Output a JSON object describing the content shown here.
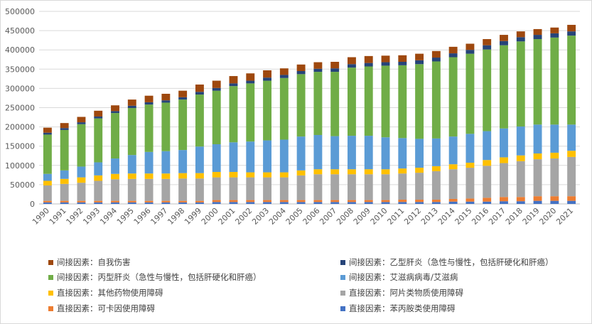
{
  "chart_data": {
    "type": "bar",
    "stacked": true,
    "title": "",
    "xlabel": "",
    "ylabel": "",
    "ylim": [
      0,
      500000
    ],
    "yticks": [
      0,
      50000,
      100000,
      150000,
      200000,
      250000,
      300000,
      350000,
      400000,
      450000,
      500000
    ],
    "ytick_labels": [
      "0",
      "50000",
      "100000",
      "150000",
      "200000",
      "250000",
      "300000",
      "350000",
      "400000",
      "450000",
      "500000"
    ],
    "grid": true,
    "legend_position": "bottom",
    "categories": [
      "1990",
      "1991",
      "1992",
      "1993",
      "1994",
      "1995",
      "1996",
      "1997",
      "1998",
      "1999",
      "2000",
      "2001",
      "2002",
      "2003",
      "2004",
      "2005",
      "2006",
      "2007",
      "2008",
      "2009",
      "2010",
      "2011",
      "2012",
      "2013",
      "2014",
      "2015",
      "2016",
      "2017",
      "2018",
      "2019",
      "2020",
      "2021"
    ],
    "series": [
      {
        "name": "直接因素：苯丙胺类使用障碍",
        "color": "#4472c4",
        "values": [
          4000,
          4000,
          4000,
          4000,
          4000,
          4000,
          4000,
          4000,
          4000,
          4000,
          5000,
          5000,
          5000,
          5000,
          5000,
          5000,
          5000,
          5000,
          5000,
          5000,
          5000,
          5000,
          5000,
          5000,
          6000,
          6000,
          6000,
          7000,
          7000,
          8000,
          8000,
          8000
        ]
      },
      {
        "name": "直接因素：可卡因使用障碍",
        "color": "#ed7d31",
        "values": [
          4000,
          4000,
          4000,
          4000,
          4000,
          4000,
          4000,
          4000,
          4000,
          4000,
          5000,
          5000,
          5000,
          5000,
          5000,
          5000,
          5000,
          5000,
          5000,
          5000,
          5000,
          6000,
          6000,
          6000,
          7000,
          8000,
          10000,
          11000,
          11000,
          12000,
          12000,
          12000
        ]
      },
      {
        "name": "直接因素：阿片类物质使用障碍",
        "color": "#a5a5a5",
        "values": [
          40000,
          44000,
          47000,
          52000,
          56000,
          57000,
          57000,
          57000,
          58000,
          58000,
          59000,
          59000,
          59000,
          59000,
          59000,
          64000,
          67000,
          67000,
          67000,
          67000,
          67000,
          68000,
          70000,
          74000,
          77000,
          80000,
          83000,
          88000,
          93000,
          96000,
          98000,
          102000
        ]
      },
      {
        "name": "直接因素：其他药物使用障碍",
        "color": "#ffc000",
        "values": [
          12000,
          13000,
          14000,
          14000,
          14000,
          14000,
          14000,
          14000,
          14000,
          14000,
          14000,
          14000,
          13000,
          13000,
          13000,
          13000,
          13000,
          13000,
          13000,
          13000,
          13000,
          13000,
          13000,
          13000,
          13000,
          13000,
          15000,
          15000,
          15000,
          15000,
          15000,
          16000
        ]
      },
      {
        "name": "间接因素：艾滋病病毒/艾滋病",
        "color": "#5b9bd5",
        "values": [
          18000,
          22000,
          28000,
          34000,
          40000,
          48000,
          56000,
          58000,
          60000,
          69000,
          72000,
          77000,
          80000,
          83000,
          85000,
          88000,
          89000,
          86000,
          87000,
          87000,
          83000,
          79000,
          75000,
          72000,
          72000,
          75000,
          75000,
          75000,
          75000,
          75000,
          73000,
          68000
        ]
      },
      {
        "name": "间接因素：丙型肝炎（急性与慢性，包括肝硬化和肝癌）",
        "color": "#70ad47",
        "values": [
          102000,
          105000,
          110000,
          114000,
          118000,
          122000,
          123000,
          126000,
          131000,
          135000,
          139000,
          146000,
          151000,
          155000,
          160000,
          162000,
          164000,
          167000,
          177000,
          180000,
          186000,
          189000,
          194000,
          200000,
          206000,
          208000,
          212000,
          216000,
          221000,
          222000,
          226000,
          231000
        ]
      },
      {
        "name": "间接因素：乙型肝炎（急性与慢性，包括肝硬化和肝癌）",
        "color": "#264478",
        "values": [
          5000,
          5000,
          5000,
          5000,
          5000,
          6000,
          6000,
          6000,
          6000,
          7000,
          7000,
          7000,
          7000,
          8000,
          8000,
          8000,
          8000,
          9000,
          9000,
          9000,
          9000,
          9000,
          10000,
          10000,
          10000,
          10000,
          11000,
          11000,
          11000,
          11000,
          11000,
          11000
        ]
      },
      {
        "name": "间接因素：自我伤害",
        "color": "#9e480e",
        "values": [
          13000,
          13000,
          14000,
          15000,
          15000,
          16000,
          17000,
          17000,
          17000,
          19000,
          19000,
          19000,
          19000,
          19000,
          17000,
          17000,
          17000,
          17000,
          18000,
          18000,
          17000,
          17000,
          17000,
          17000,
          17000,
          16000,
          16000,
          16000,
          15000,
          15000,
          15000,
          17000
        ]
      }
    ]
  },
  "legend": {
    "items": [
      {
        "label": "间接因素：自我伤害",
        "color": "#9e480e"
      },
      {
        "label": "间接因素：乙型肝炎（急性与慢性，包括肝硬化和肝癌）",
        "color": "#264478"
      },
      {
        "label": "间接因素：丙型肝炎（急性与慢性，包括肝硬化和肝癌）",
        "color": "#70ad47"
      },
      {
        "label": "间接因素：艾滋病病毒/艾滋病",
        "color": "#5b9bd5"
      },
      {
        "label": "直接因素：其他药物使用障碍",
        "color": "#ffc000"
      },
      {
        "label": "直接因素：阿片类物质使用障碍",
        "color": "#a5a5a5"
      },
      {
        "label": "直接因素：可卡因使用障碍",
        "color": "#ed7d31"
      },
      {
        "label": "直接因素：苯丙胺类使用障碍",
        "color": "#4472c4"
      }
    ]
  }
}
